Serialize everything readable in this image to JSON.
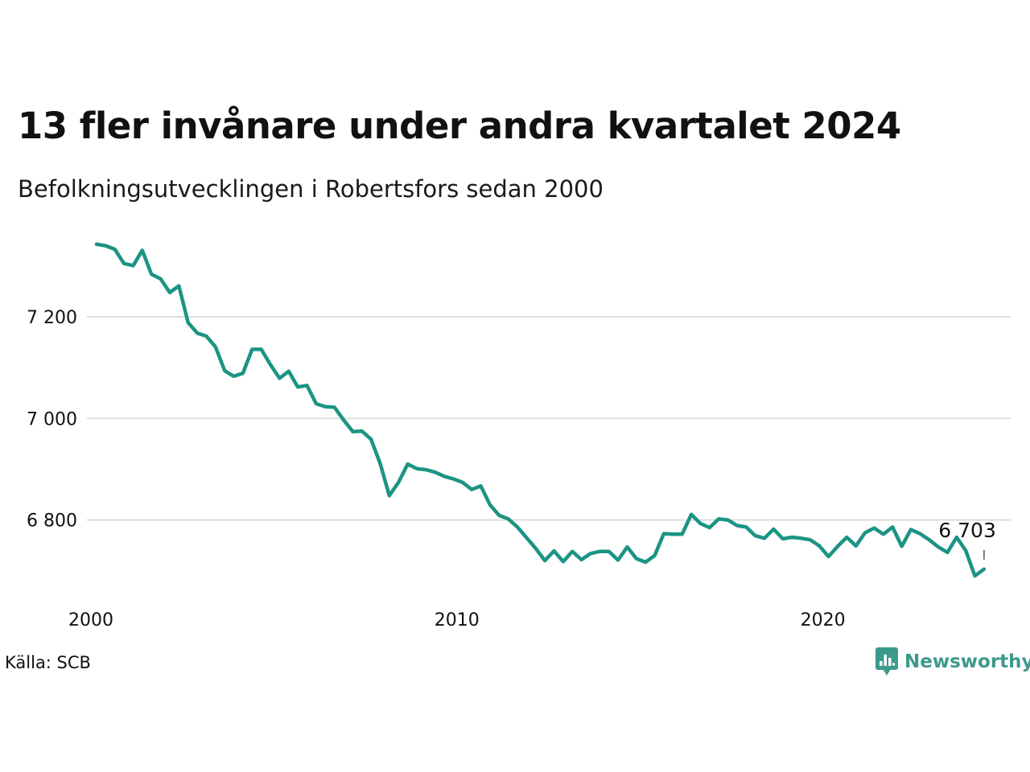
{
  "title": "13 fler invånare under andra kvartalet 2024",
  "subtitle": "Befolkningsutvecklingen i Robertsfors sedan 2000",
  "source": "Källa: SCB",
  "brand": {
    "name": "Newsworthy",
    "color": "#3d9a8a",
    "icon": "newsworthy-logo-icon"
  },
  "colors": {
    "line": "#1b9484",
    "grid": "#dddddd",
    "text": "#111111"
  },
  "chart_data": {
    "type": "line",
    "x_start": 2000.0,
    "x_step": 0.25,
    "xlim": [
      2000,
      2025
    ],
    "ylim": [
      6660,
      7360
    ],
    "x_ticks": [
      2000,
      2010,
      2020
    ],
    "x_tick_labels": [
      "2000",
      "2010",
      "2020"
    ],
    "y_ticks": [
      6800,
      7000,
      7200
    ],
    "y_tick_labels": [
      "6 800",
      "7 000",
      "7 200"
    ],
    "grid": "horizontal",
    "legend": "none",
    "end_label": "6 703",
    "series": [
      {
        "values": [
          7343,
          7340,
          7333,
          7305,
          7301,
          7331,
          7284,
          7275,
          7248,
          7261,
          7189,
          7168,
          7162,
          7141,
          7094,
          7083,
          7089,
          7136,
          7136,
          7106,
          7079,
          7093,
          7062,
          7065,
          7029,
          7023,
          7022,
          6997,
          6974,
          6975,
          6959,
          6911,
          6848,
          6874,
          6910,
          6901,
          6899,
          6894,
          6886,
          6881,
          6874,
          6860,
          6867,
          6830,
          6809,
          6802,
          6786,
          6765,
          6744,
          6720,
          6739,
          6718,
          6738,
          6722,
          6734,
          6738,
          6738,
          6721,
          6747,
          6724,
          6717,
          6730,
          6773,
          6772,
          6772,
          6811,
          6793,
          6785,
          6802,
          6800,
          6789,
          6786,
          6769,
          6764,
          6782,
          6763,
          6766,
          6764,
          6761,
          6749,
          6728,
          6748,
          6766,
          6749,
          6775,
          6784,
          6772,
          6786,
          6748,
          6781,
          6773,
          6761,
          6747,
          6736,
          6766,
          6740,
          6690,
          6703
        ]
      }
    ]
  }
}
